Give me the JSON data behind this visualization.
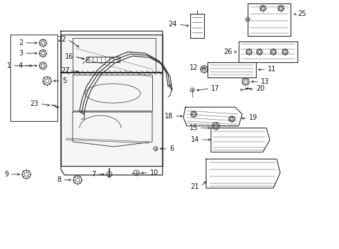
{
  "background_color": "#ffffff",
  "figsize": [
    4.9,
    3.6
  ],
  "dpi": 100,
  "line_color": "#2a2a2a",
  "label_color": "#111111",
  "label_fontsize": 7.0
}
